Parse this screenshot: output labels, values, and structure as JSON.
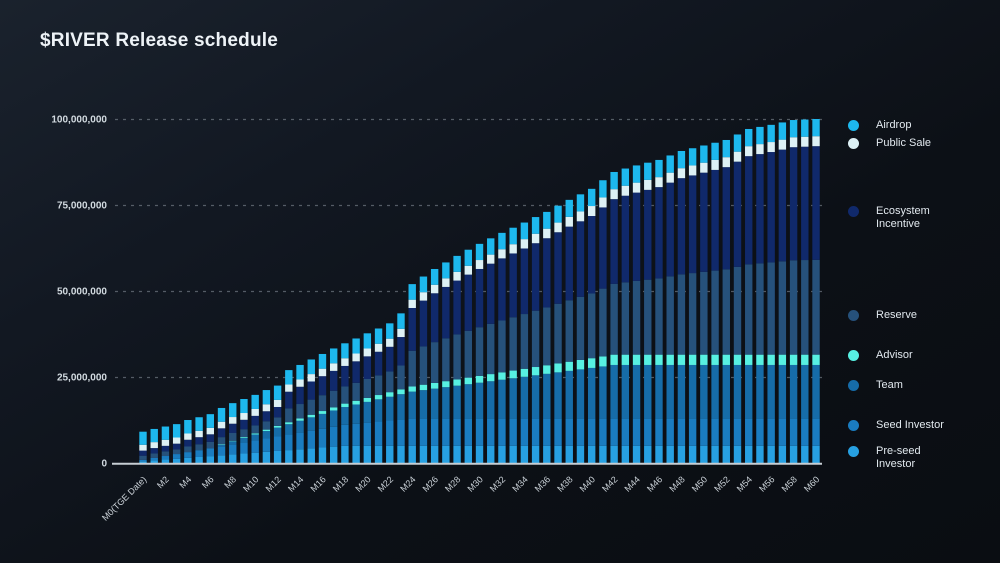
{
  "page": {
    "title": "$RIVER Release schedule"
  },
  "chart_data": {
    "type": "bar",
    "stacked": true,
    "title": "$RIVER Release schedule",
    "xlabel": "",
    "ylabel": "",
    "ylim": [
      0,
      100000000
    ],
    "grid": "horizontal-dashed",
    "legend_position": "right",
    "y_ticks": [
      {
        "value": 0,
        "label": "0"
      },
      {
        "value": 25000000,
        "label": "25,000,000"
      },
      {
        "value": 50000000,
        "label": "50,000,000"
      },
      {
        "value": 75000000,
        "label": "75,000,000"
      },
      {
        "value": 100000000,
        "label": "100,000,000"
      }
    ],
    "categories": [
      "M0(TGE Date)",
      "M1",
      "M2",
      "M3",
      "M4",
      "M5",
      "M6",
      "M7",
      "M8",
      "M9",
      "M10",
      "M11",
      "M12",
      "M13",
      "M14",
      "M15",
      "M16",
      "M17",
      "M18",
      "M19",
      "M20",
      "M21",
      "M22",
      "M23",
      "M24",
      "M25",
      "M26",
      "M27",
      "M28",
      "M29",
      "M30",
      "M31",
      "M32",
      "M33",
      "M34",
      "M35",
      "M36",
      "M37",
      "M38",
      "M39",
      "M40",
      "M41",
      "M42",
      "M43",
      "M44",
      "M45",
      "M46",
      "M47",
      "M48",
      "M49",
      "M50",
      "M51",
      "M52",
      "M53",
      "M54",
      "M55",
      "M56",
      "M57",
      "M58",
      "M59",
      "M60"
    ],
    "x_tick_every": 2,
    "stack_order_bottom_to_top": [
      "Pre-seed Investor",
      "Seed Investor",
      "Team",
      "Advisor",
      "Reserve",
      "Ecosystem Incentive",
      "Public Sale",
      "Airdrop"
    ],
    "series": [
      {
        "name": "Airdrop",
        "color": "#1db8ee",
        "values": [
          3800000,
          3830000,
          3860000,
          3890000,
          3920000,
          3950000,
          3980000,
          4010000,
          4040000,
          4070000,
          4100000,
          4130000,
          4160000,
          4190000,
          4220000,
          4250000,
          4280000,
          4310000,
          4340000,
          4370000,
          4400000,
          4430000,
          4460000,
          4490000,
          4520000,
          4550000,
          4580000,
          4610000,
          4640000,
          4670000,
          4700000,
          4730000,
          4760000,
          4790000,
          4820000,
          4850000,
          4880000,
          4910000,
          4940000,
          4970000,
          5000000,
          5000000,
          5000000,
          5000000,
          5000000,
          5000000,
          5000000,
          5000000,
          5000000,
          5000000,
          5000000,
          5000000,
          5000000,
          5000000,
          5000000,
          5000000,
          5000000,
          5000000,
          5000000,
          5000000,
          5000000
        ]
      },
      {
        "name": "Public Sale",
        "color": "#ddf1f5",
        "values": [
          1700000,
          1730000,
          1760000,
          1790000,
          1820000,
          1850000,
          1880000,
          1910000,
          1940000,
          1970000,
          2000000,
          2030000,
          2060000,
          2090000,
          2120000,
          2150000,
          2180000,
          2210000,
          2240000,
          2270000,
          2300000,
          2330000,
          2360000,
          2390000,
          2420000,
          2450000,
          2480000,
          2510000,
          2540000,
          2570000,
          2600000,
          2630000,
          2660000,
          2690000,
          2720000,
          2750000,
          2780000,
          2810000,
          2840000,
          2870000,
          2900000,
          2900000,
          2900000,
          2900000,
          2900000,
          2900000,
          2900000,
          2900000,
          2900000,
          2900000,
          2900000,
          2900000,
          2900000,
          2900000,
          2900000,
          2900000,
          2900000,
          2900000,
          2900000,
          2900000,
          2900000
        ]
      },
      {
        "name": "Ecosystem Incentive",
        "color": "#10296b",
        "values": [
          1470000,
          1560000,
          1610000,
          1650000,
          1960000,
          2050000,
          2200000,
          2560000,
          2700000,
          2740000,
          2770000,
          2910000,
          3000000,
          4830000,
          5020000,
          5270000,
          5520000,
          5770000,
          5970000,
          6250000,
          6580000,
          6860000,
          7190000,
          8280000,
          12430000,
          13320000,
          14200000,
          14930000,
          15650000,
          16320000,
          16930000,
          17490000,
          18050000,
          18550000,
          19060000,
          19610000,
          20120000,
          20790000,
          21400000,
          21960000,
          22520000,
          23600000,
          24630000,
          25180000,
          25670000,
          26110000,
          26540000,
          27250000,
          27960000,
          28390000,
          28830000,
          29270000,
          29700000,
          30570000,
          31450000,
          31770000,
          32100000,
          32480000,
          32860000,
          32950000,
          33030000
        ]
      },
      {
        "name": "Reserve",
        "color": "#26517b",
        "values": [
          1230000,
          1310000,
          1340000,
          1370000,
          1630000,
          1720000,
          1840000,
          2140000,
          2260000,
          2280000,
          2310000,
          2430000,
          2500000,
          4030000,
          4200000,
          4400000,
          4610000,
          4820000,
          4980000,
          5210000,
          5490000,
          5720000,
          6000000,
          6920000,
          10380000,
          11120000,
          11860000,
          12460000,
          13070000,
          13620000,
          14140000,
          14610000,
          15070000,
          15490000,
          15910000,
          16380000,
          16800000,
          17360000,
          17870000,
          18340000,
          18810000,
          19710000,
          20570000,
          21020000,
          21430000,
          21790000,
          22160000,
          22750000,
          23340000,
          23710000,
          24070000,
          24430000,
          24800000,
          25530000,
          26250000,
          26530000,
          26800000,
          27120000,
          27440000,
          27500000,
          27570000
        ]
      },
      {
        "name": "Advisor",
        "color": "#57f0e2",
        "values": [
          0,
          0,
          0,
          0,
          0,
          0,
          0,
          83000,
          167000,
          250000,
          333000,
          417000,
          500000,
          583000,
          667000,
          750000,
          833000,
          917000,
          1000000,
          1083000,
          1167000,
          1250000,
          1333000,
          1417000,
          1500000,
          1583000,
          1667000,
          1750000,
          1833000,
          1917000,
          2000000,
          2083000,
          2167000,
          2250000,
          2333000,
          2417000,
          2500000,
          2583000,
          2667000,
          2750000,
          2833000,
          2917000,
          3000000,
          3000000,
          3000000,
          3000000,
          3000000,
          3000000,
          3000000,
          3000000,
          3000000,
          3000000,
          3000000,
          3000000,
          3000000,
          3000000,
          3000000,
          3000000,
          3000000,
          3000000,
          3000000
        ]
      },
      {
        "name": "Team",
        "color": "#166ca8",
        "values": [
          0,
          0,
          0,
          0,
          0,
          0,
          0,
          431000,
          861000,
          1292000,
          1722000,
          2153000,
          2583000,
          3014000,
          3444000,
          3875000,
          4306000,
          4736000,
          5167000,
          5597000,
          6028000,
          6458000,
          6889000,
          7319000,
          7750000,
          8181000,
          8611000,
          9042000,
          9472000,
          9903000,
          10333000,
          10764000,
          11194000,
          11625000,
          12056000,
          12486000,
          12917000,
          13347000,
          13778000,
          14208000,
          14639000,
          15069000,
          15500000,
          15500000,
          15500000,
          15500000,
          15500000,
          15500000,
          15500000,
          15500000,
          15500000,
          15500000,
          15500000,
          15500000,
          15500000,
          15500000,
          15500000,
          15500000,
          15500000,
          15500000,
          15500000
        ]
      },
      {
        "name": "Seed Investor",
        "color": "#1a7cc0",
        "values": [
          400000,
          717000,
          1033000,
          1350000,
          1667000,
          1983000,
          2300000,
          2617000,
          2933000,
          3250000,
          3567000,
          3883000,
          4200000,
          4517000,
          4833000,
          5150000,
          5467000,
          5783000,
          6100000,
          6417000,
          6733000,
          7050000,
          7367000,
          7683000,
          8000000,
          8000000,
          8000000,
          8000000,
          8000000,
          8000000,
          8000000,
          8000000,
          8000000,
          8000000,
          8000000,
          8000000,
          8000000,
          8000000,
          8000000,
          8000000,
          8000000,
          8000000,
          8000000,
          8000000,
          8000000,
          8000000,
          8000000,
          8000000,
          8000000,
          8000000,
          8000000,
          8000000,
          8000000,
          8000000,
          8000000,
          8000000,
          8000000,
          8000000,
          8000000,
          8000000,
          8000000
        ]
      },
      {
        "name": "Pre-seed Investor",
        "color": "#27a0e2",
        "values": [
          500000,
          750000,
          1000000,
          1250000,
          1500000,
          1750000,
          2000000,
          2250000,
          2500000,
          2750000,
          3000000,
          3250000,
          3500000,
          3750000,
          4000000,
          4250000,
          4500000,
          4750000,
          5000000,
          5000000,
          5000000,
          5000000,
          5000000,
          5000000,
          5000000,
          5000000,
          5000000,
          5000000,
          5000000,
          5000000,
          5000000,
          5000000,
          5000000,
          5000000,
          5000000,
          5000000,
          5000000,
          5000000,
          5000000,
          5000000,
          5000000,
          5000000,
          5000000,
          5000000,
          5000000,
          5000000,
          5000000,
          5000000,
          5000000,
          5000000,
          5000000,
          5000000,
          5000000,
          5000000,
          5000000,
          5000000,
          5000000,
          5000000,
          5000000,
          5000000,
          5000000
        ]
      }
    ]
  },
  "colors": {
    "axis_line": "#c7ced4",
    "grid_line": "#8d96a0",
    "tick_text": "#d2dae0",
    "x_tick_text": "#ccd3d9",
    "title_text": "#eef3f7"
  }
}
